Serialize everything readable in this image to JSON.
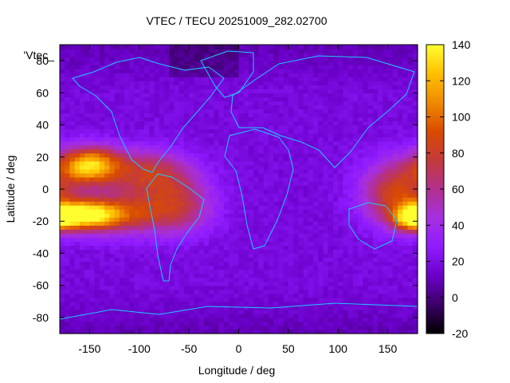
{
  "chart_data": {
    "type": "heatmap",
    "title": "VTEC / TECU 20251009_282.02700",
    "xlabel": "Longitude / deg",
    "ylabel": "Latitude / deg",
    "legend_label": "'Vtec_",
    "legend_placement": "top-left",
    "grid": false,
    "xlim": [
      -180,
      180
    ],
    "ylim": [
      -90,
      90
    ],
    "x_ticks": [
      -150,
      -100,
      -50,
      0,
      50,
      100,
      150
    ],
    "y_ticks": [
      -80,
      -60,
      -40,
      -20,
      0,
      20,
      40,
      60,
      80
    ],
    "colorbar": {
      "range": [
        -20,
        140
      ],
      "ticks": [
        -20,
        0,
        20,
        40,
        60,
        80,
        100,
        120,
        140
      ],
      "palette": [
        "#000000",
        "#3b0066",
        "#6a00c8",
        "#8f1bff",
        "#a62fe0",
        "#b2308e",
        "#c43a3c",
        "#d94b00",
        "#f08a00",
        "#ffc000",
        "#ffff30"
      ]
    },
    "grid_resolution_deg": {
      "lon": 5,
      "lat": 2.5
    },
    "features": [
      {
        "lon": -150,
        "lat": 15,
        "vtec": 125,
        "spread_lon": 22,
        "spread_lat": 8
      },
      {
        "lon": -160,
        "lat": -16,
        "vtec": 120,
        "spread_lon": 25,
        "spread_lat": 6
      },
      {
        "lon": -120,
        "lat": -15,
        "vtec": 80,
        "spread_lon": 35,
        "spread_lat": 9
      },
      {
        "lon": -90,
        "lat": 10,
        "vtec": 75,
        "spread_lon": 30,
        "spread_lat": 10
      },
      {
        "lon": -60,
        "lat": -10,
        "vtec": 65,
        "spread_lon": 25,
        "spread_lat": 12
      },
      {
        "lon": 160,
        "lat": -2,
        "vtec": 85,
        "spread_lon": 25,
        "spread_lat": 14
      },
      {
        "lon": 175,
        "lat": -18,
        "vtec": 90,
        "spread_lon": 12,
        "spread_lat": 5
      }
    ],
    "background_vtec": 18
  }
}
